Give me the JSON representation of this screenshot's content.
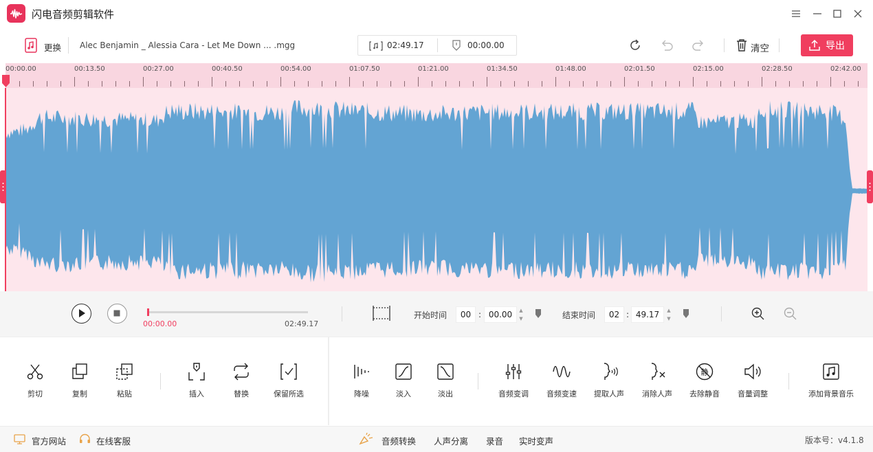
{
  "app": {
    "title": "闪电音频剪辑软件"
  },
  "toolbar": {
    "replace_label": "更换",
    "file_name": "Alec Benjamin _ Alessia Cara - Let Me Down ... .mgg",
    "duration": "02:49.17",
    "position": "00:00.00",
    "clear_label": "清空",
    "export_label": "导出"
  },
  "ruler": {
    "labels": [
      "00:00.00",
      "00:13.50",
      "00:27.00",
      "00:40.50",
      "00:54.00",
      "01:07.50",
      "01:21.00",
      "01:34.50",
      "01:48.00",
      "02:01.50",
      "02:15.00",
      "02:28.50",
      "02:42.00"
    ]
  },
  "player": {
    "current_time": "00:00.00",
    "total_time": "02:49.17",
    "progress": 0.0,
    "start_label": "开始时间",
    "start_min": "00",
    "start_sec": "00.00",
    "end_label": "结束时间",
    "end_min": "02",
    "end_sec": "49.17"
  },
  "tools": {
    "cut": "剪切",
    "copy": "复制",
    "paste": "粘贴",
    "insert": "插入",
    "replace": "替换",
    "keep": "保留所选",
    "denoise": "降噪",
    "fade_in": "淡入",
    "fade_out": "淡出",
    "pitch": "音频变调",
    "speed": "音频变速",
    "extract_voice": "提取人声",
    "remove_voice": "消除人声",
    "remove_silence": "去除静音",
    "volume": "音量调整",
    "add_bgm": "添加背景音乐"
  },
  "footer": {
    "website": "官方网站",
    "support": "在线客服",
    "convert": "音频转换",
    "separate": "人声分离",
    "record": "录音",
    "realtime": "实时变声",
    "version_label": "版本号：",
    "version": "v4.1.8"
  },
  "colors": {
    "accent": "#f03e5f",
    "wave": "#63a4d3",
    "wave_bg": "#fde6ec",
    "ruler_bg": "#f9d6e0"
  }
}
